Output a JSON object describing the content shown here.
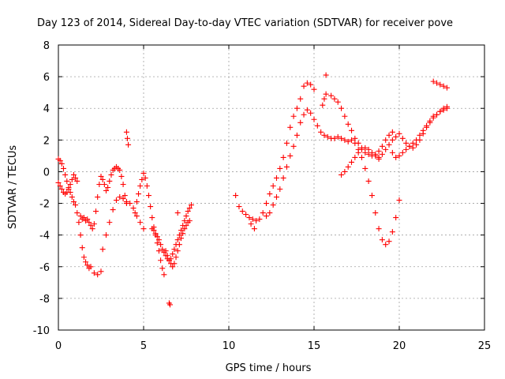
{
  "chart_data": {
    "type": "scatter",
    "title": "Day 123 of 2014, Sidereal Day-to-day VTEC variation (SDTVAR) for receiver pove",
    "xlabel": "GPS time / hours",
    "ylabel": "SDTVAR / TECUs",
    "xlim": [
      0,
      25
    ],
    "ylim": [
      -10,
      8
    ],
    "xticks": [
      0,
      5,
      10,
      15,
      20,
      25
    ],
    "yticks": [
      -10,
      -8,
      -6,
      -4,
      -2,
      0,
      2,
      4,
      6,
      8
    ],
    "grid": true,
    "marker": "+",
    "color": "#ff0000",
    "series": [
      {
        "name": "SDTVAR",
        "x": [
          0.0,
          0.1,
          0.2,
          0.3,
          0.4,
          0.5,
          0.6,
          0.7,
          0.8,
          0.9,
          1.0,
          0.0,
          0.1,
          0.2,
          0.3,
          0.4,
          0.5,
          0.6,
          0.7,
          0.8,
          0.9,
          1.0,
          1.1,
          1.1,
          1.2,
          1.3,
          1.4,
          1.5,
          1.6,
          1.7,
          1.8,
          1.9,
          1.3,
          1.4,
          1.5,
          1.6,
          1.7,
          1.8,
          1.9,
          2.0,
          2.1,
          2.2,
          2.3,
          2.4,
          2.5,
          2.6,
          2.7,
          2.8,
          2.9,
          3.0,
          3.1,
          3.2,
          3.3,
          3.4,
          3.5,
          3.6,
          3.7,
          3.8,
          3.9,
          4.0,
          2.6,
          2.8,
          3.0,
          3.2,
          3.4,
          3.6,
          3.8,
          4.0,
          4.2,
          4.4,
          4.6,
          4.8,
          5.0,
          4.0,
          4.05,
          4.1,
          2.1,
          2.3,
          2.5,
          4.5,
          4.6,
          4.7,
          4.8,
          4.9,
          5.0,
          5.1,
          5.2,
          5.3,
          5.4,
          5.5,
          5.6,
          5.7,
          5.8,
          5.9,
          6.0,
          6.1,
          6.2,
          5.5,
          5.6,
          5.7,
          5.8,
          5.9,
          6.0,
          6.1,
          6.2,
          6.3,
          6.4,
          6.5,
          6.6,
          6.7,
          6.8,
          6.9,
          7.0,
          7.1,
          7.2,
          7.3,
          7.4,
          7.5,
          7.6,
          7.7,
          7.8,
          6.3,
          6.4,
          6.5,
          6.6,
          6.7,
          6.8,
          6.9,
          7.0,
          7.1,
          7.2,
          7.3,
          7.4,
          7.5,
          7.6,
          7.7,
          6.5,
          6.55,
          7.0,
          10.4,
          10.6,
          10.8,
          11.0,
          11.2,
          11.4,
          11.6,
          11.8,
          12.0,
          12.2,
          12.4,
          12.6,
          12.8,
          13.0,
          13.2,
          13.4,
          13.6,
          13.8,
          14.0,
          14.2,
          14.4,
          14.6,
          14.8,
          15.0,
          11.3,
          11.5,
          12.2,
          12.4,
          12.6,
          12.8,
          13.0,
          13.2,
          13.4,
          13.6,
          13.8,
          14.0,
          14.2,
          14.4,
          14.6,
          14.8,
          15.0,
          15.2,
          15.4,
          15.6,
          15.8,
          16.0,
          15.5,
          15.6,
          15.7,
          16.0,
          16.2,
          16.4,
          16.6,
          16.8,
          17.0,
          17.2,
          17.4,
          17.6,
          17.8,
          18.0,
          18.2,
          18.4,
          18.6,
          18.8,
          19.0,
          19.2,
          19.4,
          19.6,
          16.2,
          16.4,
          16.6,
          16.8,
          17.0,
          17.2,
          17.4,
          17.6,
          17.8,
          18.0,
          18.2,
          18.4,
          18.6,
          18.8,
          19.0,
          19.2,
          19.4,
          19.6,
          19.8,
          20.0,
          16.6,
          16.8,
          17.0,
          17.2,
          17.4,
          17.6,
          17.8,
          18.0,
          18.2,
          18.4,
          18.6,
          18.8,
          18.8,
          19.0,
          19.2,
          19.4,
          19.6,
          19.8,
          20.0,
          20.2,
          20.4,
          20.6,
          20.8,
          21.0,
          21.2,
          21.4,
          21.6,
          21.8,
          22.0,
          22.2,
          22.4,
          22.6,
          22.8,
          19.6,
          19.8,
          20.0,
          20.2,
          20.4,
          20.6,
          20.8,
          21.0,
          21.2,
          21.4,
          21.6,
          21.8,
          22.0,
          22.2,
          22.4,
          22.6,
          22.8,
          22.0,
          22.2,
          22.4,
          22.6,
          22.8,
          15.7
        ],
        "y": [
          0.8,
          0.7,
          0.5,
          0.2,
          -0.2,
          -0.6,
          -1.0,
          -1.3,
          -1.6,
          -1.9,
          -2.1,
          -0.7,
          -0.9,
          -1.1,
          -1.3,
          -1.4,
          -1.3,
          -1.1,
          -0.8,
          -0.5,
          -0.2,
          -0.4,
          -0.6,
          -2.6,
          -3.2,
          -4.0,
          -4.8,
          -5.4,
          -5.7,
          -5.9,
          -6.1,
          -6.0,
          -2.8,
          -3.0,
          -2.9,
          -3.1,
          -3.0,
          -3.2,
          -3.4,
          -3.6,
          -3.3,
          -2.5,
          -1.6,
          -0.8,
          -0.3,
          -0.5,
          -0.8,
          -1.2,
          -1.0,
          -0.6,
          -0.2,
          0.1,
          0.2,
          0.3,
          0.2,
          0.1,
          -0.3,
          -0.8,
          -1.5,
          -2.0,
          -4.9,
          -4.0,
          -3.2,
          -2.4,
          -1.8,
          -1.6,
          -1.7,
          -1.9,
          -2.0,
          -2.3,
          -2.8,
          -3.2,
          -3.6,
          2.5,
          2.1,
          1.7,
          -6.4,
          -6.5,
          -6.3,
          -2.6,
          -1.9,
          -1.4,
          -0.9,
          -0.5,
          -0.1,
          -0.4,
          -0.9,
          -1.5,
          -2.2,
          -2.9,
          -3.5,
          -4.0,
          -4.5,
          -5.0,
          -5.6,
          -6.1,
          -6.5,
          -3.6,
          -3.7,
          -3.9,
          -4.1,
          -4.3,
          -4.6,
          -4.9,
          -5.1,
          -5.3,
          -5.5,
          -5.6,
          -5.5,
          -5.2,
          -4.9,
          -4.6,
          -4.3,
          -4.0,
          -3.7,
          -3.4,
          -3.1,
          -2.8,
          -2.5,
          -2.3,
          -2.1,
          -5.0,
          -5.3,
          -5.6,
          -5.8,
          -6.0,
          -5.8,
          -5.4,
          -5.0,
          -4.6,
          -4.2,
          -3.9,
          -3.6,
          -3.4,
          -3.2,
          -3.1,
          -8.3,
          -8.4,
          -2.6,
          -1.5,
          -2.2,
          -2.5,
          -2.7,
          -2.9,
          -3.0,
          -3.1,
          -3.0,
          -2.6,
          -2.0,
          -1.4,
          -0.9,
          -0.4,
          0.2,
          0.9,
          1.8,
          2.8,
          3.5,
          4.0,
          4.6,
          5.4,
          5.6,
          5.5,
          5.2,
          -3.3,
          -3.6,
          -2.8,
          -2.6,
          -2.1,
          -1.6,
          -1.1,
          -0.4,
          0.3,
          1.0,
          1.6,
          2.3,
          3.1,
          3.6,
          3.9,
          3.7,
          3.3,
          2.9,
          2.5,
          2.3,
          2.2,
          2.1,
          4.2,
          4.6,
          4.9,
          4.8,
          4.6,
          4.4,
          4.0,
          3.5,
          3.0,
          2.6,
          2.1,
          1.8,
          1.5,
          1.2,
          1.1,
          1.0,
          1.1,
          1.3,
          1.6,
          2.0,
          2.3,
          2.5,
          2.1,
          2.2,
          2.1,
          2.0,
          1.9,
          2.0,
          1.8,
          1.4,
          0.9,
          0.2,
          -0.6,
          -1.5,
          -2.6,
          -3.6,
          -4.3,
          -4.6,
          -4.4,
          -3.8,
          -2.9,
          -1.8,
          -0.2,
          0.0,
          0.3,
          0.6,
          0.9,
          1.2,
          1.4,
          1.5,
          1.4,
          1.2,
          1.0,
          0.9,
          0.8,
          1.1,
          1.4,
          1.7,
          2.0,
          2.2,
          2.4,
          2.1,
          1.8,
          1.6,
          1.5,
          1.7,
          2.0,
          2.4,
          2.8,
          3.1,
          3.4,
          3.6,
          3.8,
          4.0,
          4.1,
          1.2,
          0.9,
          1.0,
          1.2,
          1.4,
          1.6,
          1.8,
          2.0,
          2.3,
          2.6,
          2.9,
          3.2,
          3.5,
          3.6,
          3.8,
          3.9,
          4.0,
          5.7,
          5.6,
          5.5,
          5.4,
          5.3,
          6.1
        ]
      }
    ]
  }
}
